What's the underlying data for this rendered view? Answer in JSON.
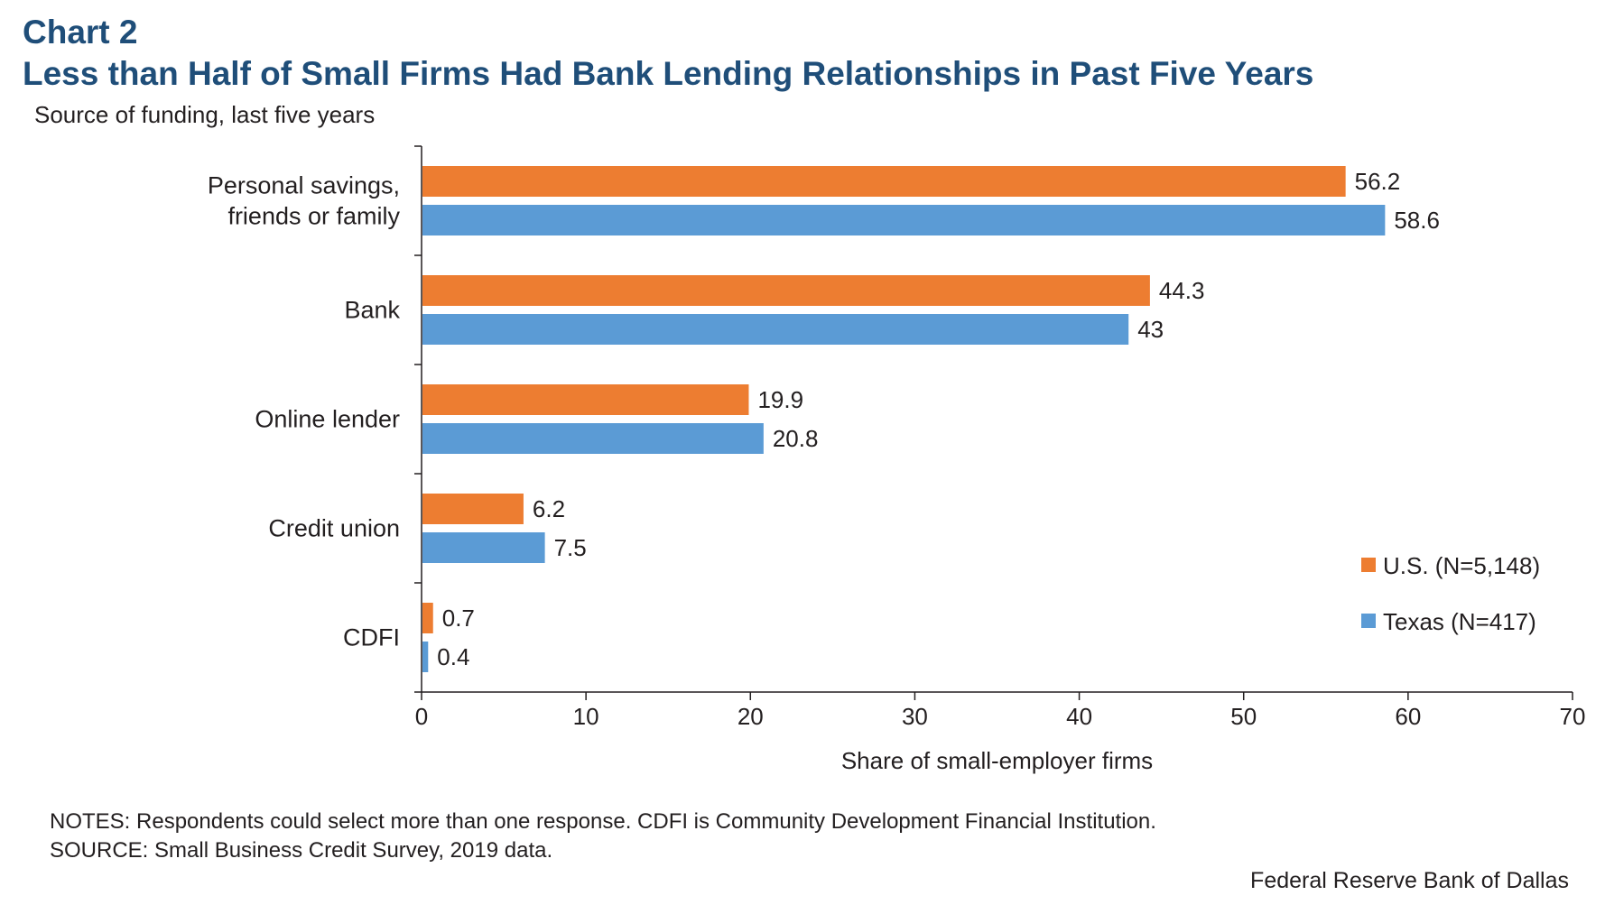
{
  "chart_label": "Chart 2",
  "title": "Less than Half of Small Firms Had Bank Lending Relationships in Past Five Years",
  "subtitle": "Source of funding, last five years",
  "notes": {
    "line1": "NOTES: Respondents could select more than one response. CDFI is Community Development Financial Institution.",
    "line2": "SOURCE: Small Business Credit Survey, 2019 data."
  },
  "credit": "Federal Reserve Bank of Dallas",
  "colors": {
    "us": "#ed7d31",
    "texas": "#5b9bd5",
    "title": "#1f4e79",
    "axis": "#231f20"
  },
  "chart_data": {
    "type": "bar",
    "orientation": "horizontal",
    "categories": [
      [
        "Personal savings,",
        "friends or family"
      ],
      [
        "Bank"
      ],
      [
        "Online lender"
      ],
      [
        "Credit union"
      ],
      [
        "CDFI"
      ]
    ],
    "series": [
      {
        "name": "U.S. (N=5,148)",
        "values": [
          56.2,
          44.3,
          19.9,
          6.2,
          0.7
        ],
        "labels": [
          "56.2",
          "44.3",
          "19.9",
          "6.2",
          "0.7"
        ]
      },
      {
        "name": "Texas (N=417)",
        "values": [
          58.6,
          43,
          20.8,
          7.5,
          0.4
        ],
        "labels": [
          "58.6",
          "43",
          "20.8",
          "7.5",
          "0.4"
        ]
      }
    ],
    "xlabel": "Share of small-employer firms",
    "xlim": [
      0,
      70
    ],
    "xticks": [
      0,
      10,
      20,
      30,
      40,
      50,
      60,
      70
    ],
    "grid": false,
    "legend_position": "bottom-right"
  }
}
